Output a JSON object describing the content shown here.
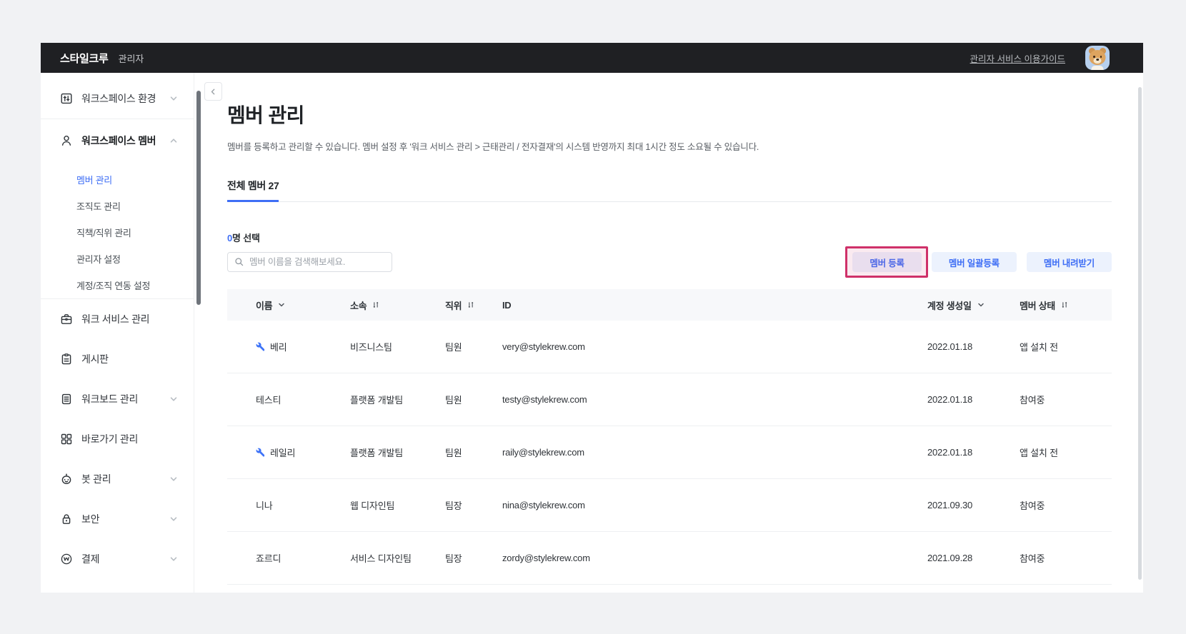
{
  "topbar": {
    "brand": "스타일크루",
    "role": "관리자",
    "guide_link": "관리자 서비스 이용가이드",
    "avatar": "ryan-character-avatar"
  },
  "sidebar": {
    "items": [
      {
        "type": "item",
        "key": "workspace-env",
        "icon": "workspace-env",
        "label": "워크스페이스 환경",
        "chevron": "down"
      },
      {
        "type": "divider"
      },
      {
        "type": "item",
        "key": "workspace-member",
        "icon": "person",
        "label": "워크스페이스 멤버",
        "chevron": "up",
        "bold": true
      },
      {
        "type": "subitem",
        "key": "member-management",
        "label": "멤버 관리",
        "active": true
      },
      {
        "type": "subitem",
        "key": "org-chart-management",
        "label": "조직도 관리"
      },
      {
        "type": "subitem",
        "key": "job-title-management",
        "label": "직책/직위 관리"
      },
      {
        "type": "subitem",
        "key": "admin-settings",
        "label": "관리자 설정"
      },
      {
        "type": "subitem",
        "key": "account-org-sync-settings",
        "label": "계정/조직 연동 설정"
      },
      {
        "type": "divider"
      },
      {
        "type": "item",
        "key": "work-service-management",
        "icon": "briefcase",
        "label": "워크 서비스 관리"
      },
      {
        "type": "item",
        "key": "board",
        "icon": "board",
        "label": "게시판"
      },
      {
        "type": "item",
        "key": "workboard-management",
        "icon": "workboard",
        "label": "워크보드 관리",
        "chevron": "down"
      },
      {
        "type": "item",
        "key": "shortcut-management",
        "icon": "shortcut",
        "label": "바로가기 관리"
      },
      {
        "type": "item",
        "key": "bot-management",
        "icon": "bot",
        "label": "봇 관리",
        "chevron": "down"
      },
      {
        "type": "item",
        "key": "security",
        "icon": "lock",
        "label": "보안",
        "chevron": "down"
      },
      {
        "type": "item",
        "key": "payment",
        "icon": "payment",
        "label": "결제",
        "chevron": "down"
      }
    ]
  },
  "main": {
    "title": "멤버 관리",
    "description": "멤버를 등록하고 관리할 수 있습니다. 멤버 설정 후 '워크 서비스 관리 > 근태관리 / 전자결재'의 시스템 반영까지 최대 1시간 정도 소요될 수 있습니다.",
    "tab_label": "전체 멤버 27",
    "selection": {
      "count": "0",
      "label": "명 선택"
    },
    "search_placeholder": "멤버 이름을 검색해보세요.",
    "toolbar": {
      "buttons": [
        {
          "key": "member-register",
          "label": "멤버 등록",
          "highlighted": true
        },
        {
          "key": "member-bulk-register",
          "label": "멤버 일괄등록"
        },
        {
          "key": "member-download",
          "label": "멤버 내려받기"
        }
      ]
    },
    "table": {
      "columns": [
        {
          "key": "name",
          "label": "이름",
          "sort": "chevron"
        },
        {
          "key": "dept",
          "label": "소속",
          "sort": "swap"
        },
        {
          "key": "position",
          "label": "직위",
          "sort": "swap"
        },
        {
          "key": "id",
          "label": "ID",
          "sort": null
        },
        {
          "key": "created",
          "label": "계정 생성일",
          "sort": "chevron"
        },
        {
          "key": "status",
          "label": "멤버 상태",
          "sort": "swap"
        }
      ],
      "rows": [
        {
          "name": "베리",
          "admin": true,
          "dept": "비즈니스팀",
          "position": "팀원",
          "id": "very@stylekrew.com",
          "created": "2022.01.18",
          "status": "앱 설치 전"
        },
        {
          "name": "테스티",
          "admin": false,
          "dept": "플랫폼 개발팀",
          "position": "팀원",
          "id": "testy@stylekrew.com",
          "created": "2022.01.18",
          "status": "참여중"
        },
        {
          "name": "레일리",
          "admin": true,
          "dept": "플랫폼 개발팀",
          "position": "팀원",
          "id": "raily@stylekrew.com",
          "created": "2022.01.18",
          "status": "앱 설치 전"
        },
        {
          "name": "니나",
          "admin": false,
          "dept": "웹 디자인팀",
          "position": "팀장",
          "id": "nina@stylekrew.com",
          "created": "2021.09.30",
          "status": "참여중"
        },
        {
          "name": "죠르디",
          "admin": false,
          "dept": "서비스 디자인팀",
          "position": "팀장",
          "id": "zordy@stylekrew.com",
          "created": "2021.09.28",
          "status": "참여중"
        }
      ]
    }
  },
  "colors": {
    "accent_blue": "#3e6ef5",
    "button_bg": "#ecf2fd",
    "annotation_pink": "#cf3169",
    "topbar_bg": "#1f2023",
    "table_header_bg": "#f7f8fa"
  }
}
